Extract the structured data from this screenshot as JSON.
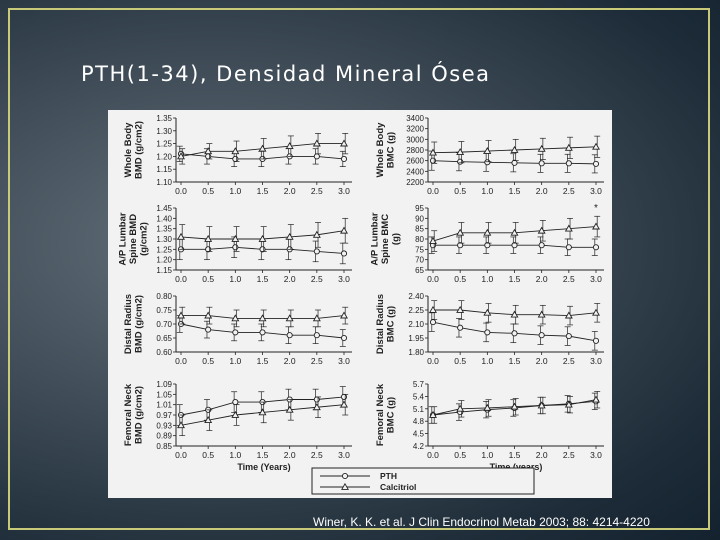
{
  "slide": {
    "title": "PTH(1-34), Densidad Mineral Ósea",
    "citation": "Winer, K. K. et al. J Clin Endocrinol Metab 2003; 88: 4214-4220"
  },
  "colors": {
    "frame": "#c9c97a",
    "figure_background": "#f2f2f2",
    "ink": "#222222"
  },
  "legend": {
    "items": [
      {
        "label": "PTH",
        "marker": "circle"
      },
      {
        "label": "Calcitriol",
        "marker": "triangle"
      }
    ]
  },
  "chart_data": [
    {
      "id": "wb-bmd",
      "type": "line",
      "ylabel": [
        "Whole Body",
        "BMD (g/cm2)"
      ],
      "xlabel": "",
      "x": [
        0,
        0.5,
        1,
        1.5,
        2,
        2.5,
        3
      ],
      "xticks": [
        "0.0",
        "0.5",
        "1.0",
        "1.5",
        "2.0",
        "2.5",
        "3.0"
      ],
      "ylim": [
        1.1,
        1.35
      ],
      "yticks": [
        "1.10",
        "1.15",
        "1.20",
        "1.25",
        "1.30",
        "1.35"
      ],
      "series": [
        {
          "marker": "circle",
          "values": [
            1.21,
            1.2,
            1.19,
            1.19,
            1.2,
            1.2,
            1.19
          ],
          "err": [
            0.03,
            0.03,
            0.03,
            0.03,
            0.03,
            0.03,
            0.03
          ]
        },
        {
          "marker": "triangle",
          "values": [
            1.2,
            1.22,
            1.22,
            1.23,
            1.24,
            1.25,
            1.25
          ],
          "err": [
            0.03,
            0.03,
            0.04,
            0.04,
            0.04,
            0.04,
            0.04
          ]
        }
      ]
    },
    {
      "id": "wb-bmc",
      "type": "line",
      "ylabel": [
        "Whole Body",
        "BMC (g)"
      ],
      "xlabel": "",
      "x": [
        0,
        0.5,
        1,
        1.5,
        2,
        2.5,
        3
      ],
      "xticks": [
        "0.0",
        "0.5",
        "1.0",
        "1.5",
        "2.0",
        "2.5",
        "3.0"
      ],
      "ylim": [
        2200,
        3400
      ],
      "yticks": [
        "2200",
        "2400",
        "2600",
        "2800",
        "3000",
        "3200",
        "3400"
      ],
      "series": [
        {
          "marker": "circle",
          "values": [
            2600,
            2580,
            2570,
            2560,
            2550,
            2550,
            2540
          ],
          "err": [
            180,
            170,
            170,
            170,
            170,
            170,
            170
          ]
        },
        {
          "marker": "triangle",
          "values": [
            2750,
            2760,
            2780,
            2800,
            2820,
            2840,
            2860
          ],
          "err": [
            200,
            200,
            200,
            200,
            200,
            200,
            200
          ]
        }
      ]
    },
    {
      "id": "lumbar-bmd",
      "type": "line",
      "ylabel": [
        "A/P Lumbar",
        "Spine BMD",
        "(g/cm2)"
      ],
      "xlabel": "",
      "x": [
        0,
        0.5,
        1,
        1.5,
        2,
        2.5,
        3
      ],
      "xticks": [
        "0.0",
        "0.5",
        "1.0",
        "1.5",
        "2.0",
        "2.5",
        "3.0"
      ],
      "ylim": [
        1.15,
        1.45
      ],
      "yticks": [
        "1.15",
        "1.20",
        "1.25",
        "1.30",
        "1.35",
        "1.40",
        "1.45"
      ],
      "series": [
        {
          "marker": "circle",
          "values": [
            1.25,
            1.25,
            1.26,
            1.25,
            1.25,
            1.24,
            1.23
          ],
          "err": [
            0.05,
            0.05,
            0.05,
            0.05,
            0.05,
            0.05,
            0.05
          ]
        },
        {
          "marker": "triangle",
          "values": [
            1.31,
            1.3,
            1.3,
            1.3,
            1.31,
            1.32,
            1.34
          ],
          "err": [
            0.06,
            0.06,
            0.06,
            0.06,
            0.06,
            0.06,
            0.06
          ]
        }
      ]
    },
    {
      "id": "lumbar-bmc",
      "type": "line",
      "ylabel": [
        "A/P Lumbar",
        "Spine BMC",
        "(g)"
      ],
      "xlabel": "",
      "x": [
        0,
        0.5,
        1,
        1.5,
        2,
        2.5,
        3
      ],
      "xticks": [
        "0.0",
        "0.5",
        "1.0",
        "1.5",
        "2.0",
        "2.5",
        "3.0"
      ],
      "ylim": [
        65,
        95
      ],
      "yticks": [
        "65",
        "70",
        "75",
        "80",
        "85",
        "90",
        "95"
      ],
      "annotations": [
        {
          "x": 3.0,
          "y": 93.5,
          "text": "*"
        }
      ],
      "series": [
        {
          "marker": "circle",
          "values": [
            77,
            77,
            77,
            77,
            77,
            76,
            76
          ],
          "err": [
            4,
            4,
            4,
            4,
            4,
            4,
            4
          ]
        },
        {
          "marker": "triangle",
          "values": [
            79,
            83,
            83,
            83,
            84,
            85,
            86
          ],
          "err": [
            5,
            5,
            5,
            5,
            5,
            5,
            5
          ]
        }
      ]
    },
    {
      "id": "radius-bmd",
      "type": "line",
      "ylabel": [
        "Distal Radius",
        "BMD (g/cm2)"
      ],
      "xlabel": "",
      "x": [
        0,
        0.5,
        1,
        1.5,
        2,
        2.5,
        3
      ],
      "xticks": [
        "0.0",
        "0.5",
        "1.0",
        "1.5",
        "2.0",
        "2.5",
        "3.0"
      ],
      "ylim": [
        0.6,
        0.8
      ],
      "yticks": [
        "0.60",
        "0.65",
        "0.70",
        "0.75",
        "0.80"
      ],
      "series": [
        {
          "marker": "circle",
          "values": [
            0.7,
            0.68,
            0.67,
            0.67,
            0.66,
            0.66,
            0.65
          ],
          "err": [
            0.03,
            0.03,
            0.03,
            0.03,
            0.03,
            0.03,
            0.03
          ]
        },
        {
          "marker": "triangle",
          "values": [
            0.73,
            0.73,
            0.72,
            0.72,
            0.72,
            0.72,
            0.73
          ],
          "err": [
            0.03,
            0.03,
            0.03,
            0.03,
            0.03,
            0.03,
            0.03
          ]
        }
      ]
    },
    {
      "id": "radius-bmc",
      "type": "line",
      "ylabel": [
        "Distal Radius",
        "BMC (g)"
      ],
      "xlabel": "",
      "x": [
        0,
        0.5,
        1,
        1.5,
        2,
        2.5,
        3
      ],
      "xticks": [
        "0.0",
        "0.5",
        "1.0",
        "1.5",
        "2.0",
        "2.5",
        "3.0"
      ],
      "ylim": [
        1.8,
        2.4
      ],
      "yticks": [
        "1.80",
        "1.95",
        "2.10",
        "2.25",
        "2.40"
      ],
      "series": [
        {
          "marker": "circle",
          "values": [
            2.12,
            2.06,
            2.01,
            2.0,
            1.98,
            1.97,
            1.92
          ],
          "err": [
            0.1,
            0.1,
            0.1,
            0.1,
            0.1,
            0.1,
            0.1
          ]
        },
        {
          "marker": "triangle",
          "values": [
            2.25,
            2.25,
            2.22,
            2.2,
            2.2,
            2.19,
            2.22
          ],
          "err": [
            0.1,
            0.1,
            0.1,
            0.1,
            0.1,
            0.1,
            0.1
          ]
        }
      ]
    },
    {
      "id": "neck-bmd",
      "type": "line",
      "ylabel": [
        "Femoral Neck",
        "BMD (g/cm2)"
      ],
      "xlabel": "Time (Years)",
      "x": [
        0,
        0.5,
        1,
        1.5,
        2,
        2.5,
        3
      ],
      "xticks": [
        "0.0",
        "0.5",
        "1.0",
        "1.5",
        "2.0",
        "2.5",
        "3.0"
      ],
      "ylim": [
        0.85,
        1.09
      ],
      "yticks": [
        "0.85",
        "0.89",
        "0.93",
        "0.97",
        "1.01",
        "1.05",
        "1.09"
      ],
      "series": [
        {
          "marker": "circle",
          "values": [
            0.97,
            0.99,
            1.02,
            1.02,
            1.03,
            1.03,
            1.04
          ],
          "err": [
            0.04,
            0.04,
            0.04,
            0.04,
            0.04,
            0.04,
            0.04
          ]
        },
        {
          "marker": "triangle",
          "values": [
            0.93,
            0.95,
            0.97,
            0.98,
            0.99,
            1.0,
            1.01
          ],
          "err": [
            0.04,
            0.04,
            0.04,
            0.04,
            0.04,
            0.04,
            0.04
          ]
        }
      ]
    },
    {
      "id": "neck-bmc",
      "type": "line",
      "ylabel": [
        "Femoral Neck",
        "BMC (g)"
      ],
      "xlabel": "Time (years)",
      "x": [
        0,
        0.5,
        1,
        1.5,
        2,
        2.5,
        3
      ],
      "xticks": [
        "0.0",
        "0.5",
        "1.0",
        "1.5",
        "2.0",
        "2.5",
        "3.0"
      ],
      "ylim": [
        4.2,
        5.7
      ],
      "yticks": [
        "4.2",
        "4.5",
        "4.8",
        "5.1",
        "5.4",
        "5.7"
      ],
      "series": [
        {
          "marker": "circle",
          "values": [
            4.95,
            5.02,
            5.08,
            5.12,
            5.18,
            5.22,
            5.28
          ],
          "err": [
            0.2,
            0.2,
            0.2,
            0.2,
            0.2,
            0.2,
            0.2
          ]
        },
        {
          "marker": "triangle",
          "values": [
            4.95,
            5.1,
            5.12,
            5.15,
            5.18,
            5.2,
            5.32
          ],
          "err": [
            0.2,
            0.2,
            0.2,
            0.2,
            0.2,
            0.2,
            0.2
          ]
        }
      ]
    }
  ]
}
